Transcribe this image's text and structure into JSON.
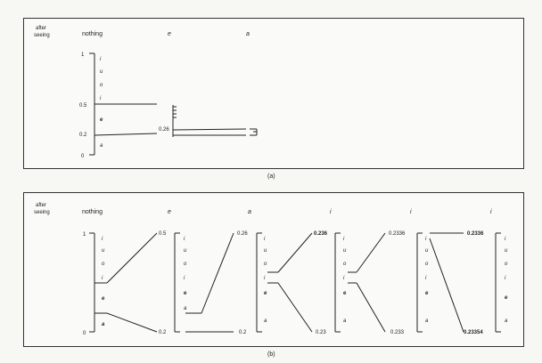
{
  "panel_a": {
    "after_seeing": [
      "after",
      "seeing"
    ],
    "headers": [
      "nothing",
      "e",
      "a"
    ],
    "left_scale": {
      "labels": [
        "1",
        "0.5",
        "0.2",
        "0"
      ]
    },
    "letters": [
      "i",
      "u",
      "o",
      "i",
      "e",
      "a"
    ],
    "value_026": "0.26",
    "caption": "(a)"
  },
  "panel_b": {
    "after_seeing": [
      "after",
      "seeing"
    ],
    "headers": [
      "nothing",
      "e",
      "a",
      "i",
      "i",
      "i"
    ],
    "left_scale": {
      "labels": [
        "1",
        "0"
      ]
    },
    "letters": [
      "i",
      "u",
      "o",
      "i",
      "e",
      "a"
    ],
    "letters_alt": [
      "i",
      "u",
      "o",
      "i",
      "e",
      "a"
    ],
    "top_values": [
      "0.5",
      "0.26",
      "0.236",
      "0.2336",
      "0.2336"
    ],
    "bottom_values": [
      "0.2",
      "0.2",
      "0.23",
      "0.233",
      "0.23354"
    ],
    "caption": "(b)"
  }
}
